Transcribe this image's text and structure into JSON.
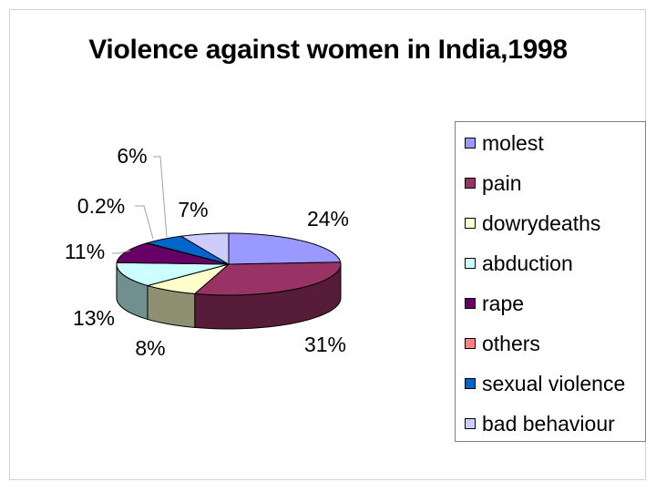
{
  "chart_data": {
    "type": "pie",
    "title": "Violence against women in India,1998",
    "slices": [
      {
        "name": "molest",
        "value": 24,
        "label": "24%",
        "color": "#9999ff",
        "side": "#56568f"
      },
      {
        "name": "pain",
        "value": 31,
        "label": "31%",
        "color": "#993366",
        "side": "#561c39"
      },
      {
        "name": "dowrydeaths",
        "value": 8,
        "label": "8%",
        "color": "#ffffcc",
        "side": "#8f8f72"
      },
      {
        "name": "abduction",
        "value": 13,
        "label": "13%",
        "color": "#ccffff",
        "side": "#728f8f"
      },
      {
        "name": "rape",
        "value": 11,
        "label": "11%",
        "color": "#660066",
        "side": "#390039"
      },
      {
        "name": "others",
        "value": 0.2,
        "label": "0.2%",
        "color": "#ff8080",
        "side": "#8f4848"
      },
      {
        "name": "sexual violence",
        "value": 6,
        "label": "6%",
        "color": "#0066cc",
        "side": "#003972"
      },
      {
        "name": "bad behaviour",
        "value": 7,
        "label": "7%",
        "color": "#ccccff",
        "side": "#72728f"
      }
    ],
    "legend_position": "right"
  }
}
